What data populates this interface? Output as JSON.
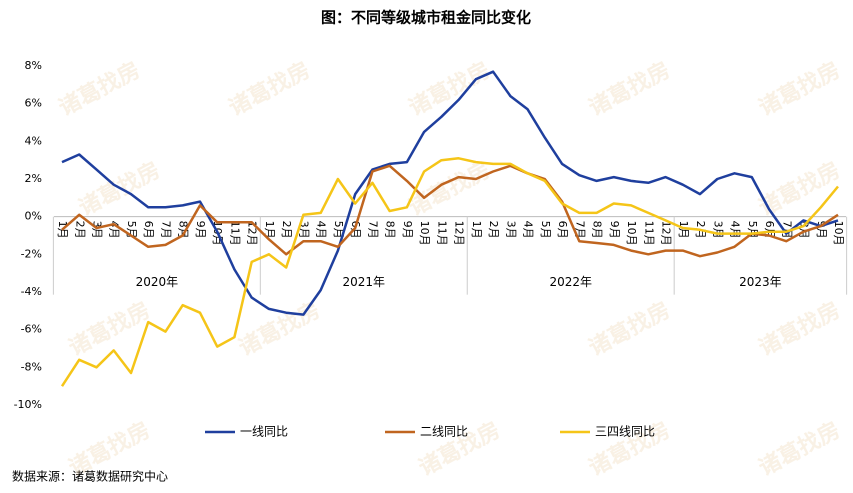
{
  "chart_data": {
    "type": "line",
    "title": "图：不同等级城市租金同比变化",
    "categories": [
      "1月",
      "2月",
      "3月",
      "4月",
      "5月",
      "6月",
      "7月",
      "8月",
      "9月",
      "10月",
      "11月",
      "12月",
      "1月",
      "2月",
      "3月",
      "4月",
      "5月",
      "6月",
      "7月",
      "8月",
      "9月",
      "10月",
      "11月",
      "12月",
      "1月",
      "2月",
      "3月",
      "4月",
      "5月",
      "6月",
      "7月",
      "8月",
      "9月",
      "10月",
      "11月",
      "12月",
      "1月",
      "2月",
      "3月",
      "4月",
      "5月",
      "6月",
      "7月",
      "8月",
      "9月",
      "10月"
    ],
    "groups": [
      "2020年",
      "2021年",
      "2022年",
      "2023年"
    ],
    "series": [
      {
        "name": "一线同比",
        "color": "#1f3f9e",
        "values": [
          2.9,
          3.3,
          2.5,
          1.7,
          1.2,
          0.5,
          0.5,
          0.6,
          0.8,
          -0.8,
          -2.8,
          -4.3,
          -4.9,
          -5.1,
          -5.2,
          -3.9,
          -1.8,
          1.2,
          2.5,
          2.8,
          2.9,
          4.5,
          5.3,
          6.2,
          7.3,
          7.7,
          6.4,
          5.7,
          4.2,
          2.8,
          2.2,
          1.9,
          2.1,
          1.9,
          1.8,
          2.1,
          1.7,
          1.2,
          2.0,
          2.3,
          2.1,
          0.4,
          -0.9,
          -0.2,
          -0.5,
          -0.2
        ]
      },
      {
        "name": "二线同比",
        "color": "#c0651f",
        "values": [
          -0.7,
          0.1,
          -0.6,
          -0.4,
          -1.0,
          -1.6,
          -1.5,
          -1.0,
          0.6,
          -0.3,
          -0.3,
          -0.3,
          -1.2,
          -2.0,
          -1.3,
          -1.3,
          -1.6,
          -0.6,
          2.4,
          2.7,
          1.9,
          1.0,
          1.7,
          2.1,
          2.0,
          2.4,
          2.7,
          2.3,
          2.0,
          0.8,
          -1.3,
          -1.4,
          -1.5,
          -1.8,
          -2.0,
          -1.8,
          -1.8,
          -2.1,
          -1.9,
          -1.6,
          -0.9,
          -1.0,
          -1.3,
          -0.8,
          -0.5,
          0.1
        ]
      },
      {
        "name": "三四线同比",
        "color": "#f5c518",
        "values": [
          -9.0,
          -7.6,
          -8.0,
          -7.1,
          -8.3,
          -5.6,
          -6.1,
          -4.7,
          -5.1,
          -6.9,
          -6.4,
          -2.4,
          -2.0,
          -2.7,
          0.1,
          0.2,
          2.0,
          0.7,
          1.8,
          0.3,
          0.5,
          2.4,
          3.0,
          3.1,
          2.9,
          2.8,
          2.8,
          2.3,
          1.9,
          0.7,
          0.2,
          0.2,
          0.7,
          0.6,
          0.2,
          -0.2,
          -0.6,
          -0.7,
          -0.9,
          -0.9,
          -0.9,
          -0.8,
          -0.8,
          -0.5,
          0.5,
          1.6
        ]
      }
    ],
    "ylim": [
      -10,
      8
    ],
    "yticks": [
      {
        "value": -10,
        "label": "-10%"
      },
      {
        "value": -8,
        "label": "-8%"
      },
      {
        "value": -6,
        "label": "-6%"
      },
      {
        "value": -4,
        "label": "-4%"
      },
      {
        "value": -2,
        "label": "-2%"
      },
      {
        "value": 0,
        "label": "0%"
      },
      {
        "value": 2,
        "label": "2%"
      },
      {
        "value": 4,
        "label": "4%"
      },
      {
        "value": 6,
        "label": "6%"
      },
      {
        "value": 8,
        "label": "8%"
      }
    ],
    "legend": "bottom",
    "source": "数据来源：诸葛数据研究中心",
    "watermark": "诸葛找房"
  }
}
